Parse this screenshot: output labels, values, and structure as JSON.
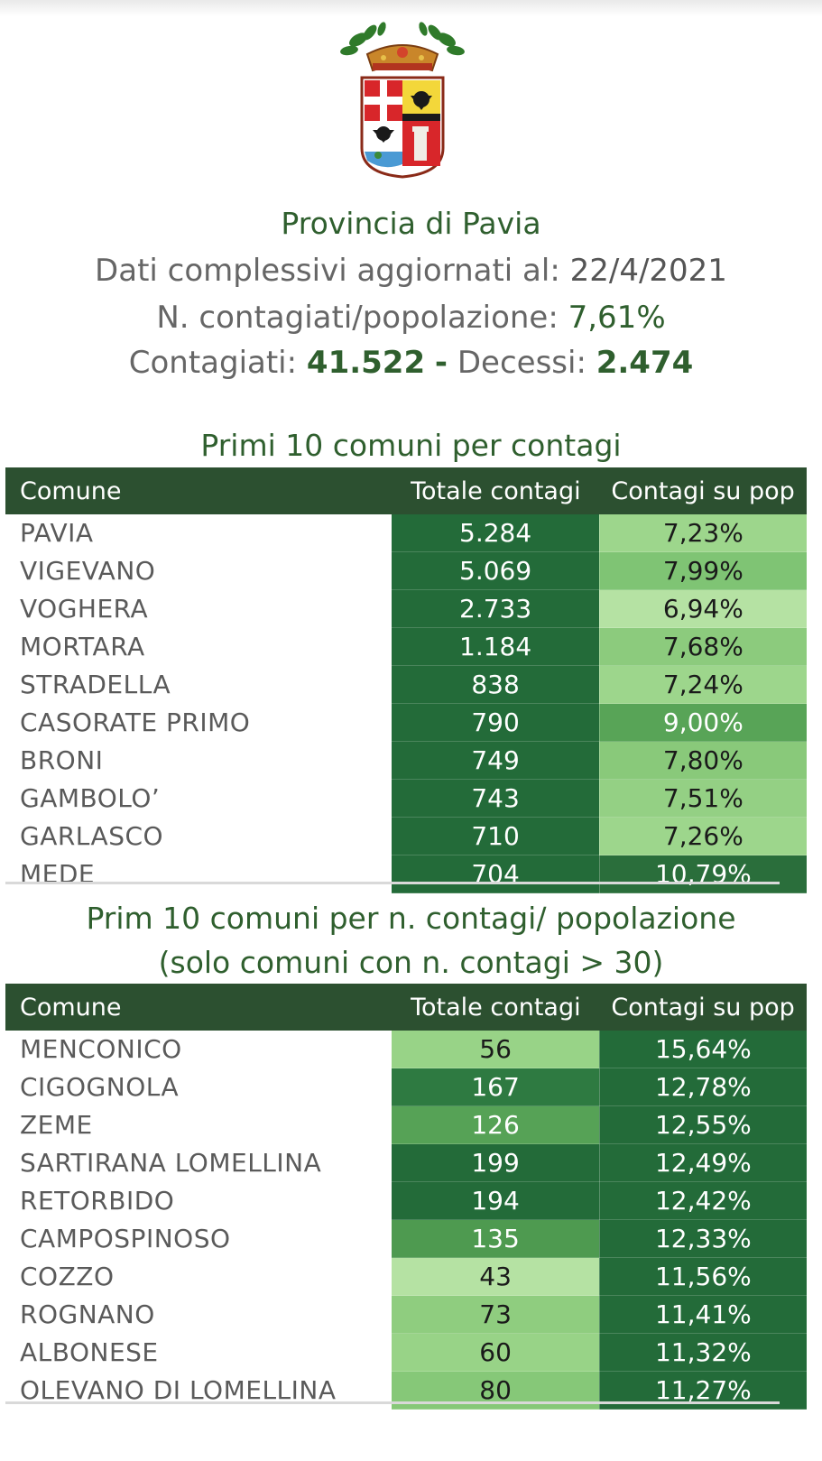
{
  "header": {
    "title": "Provincia di Pavia",
    "updated_label": "Dati complessivi aggiornati al:",
    "updated_date": "22/4/2021",
    "ratio_label": "N. contagiati/popolazione:",
    "ratio_value": "7,61%",
    "cases_label": "Contagiati:",
    "cases_value": "41.522",
    "sep": "-",
    "deaths_label": "Decessi:",
    "deaths_value": "2.474"
  },
  "table1": {
    "title": "Primi 10 comuni per contagi",
    "columns": [
      "Comune",
      "Totale contagi",
      "Contagi su pop"
    ],
    "rows": [
      {
        "comune": "PAVIA",
        "totale": "5.284",
        "pct": "7,23%",
        "c2": "#236b39",
        "c3": "#9dd68c",
        "t3": "#1a1a1a"
      },
      {
        "comune": "VIGEVANO",
        "totale": "5.069",
        "pct": "7,99%",
        "c2": "#236b39",
        "c3": "#7fc474",
        "t3": "#1a1a1a"
      },
      {
        "comune": "VOGHERA",
        "totale": "2.733",
        "pct": "6,94%",
        "c2": "#236b39",
        "c3": "#b5e2a3",
        "t3": "#1a1a1a"
      },
      {
        "comune": "MORTARA",
        "totale": "1.184",
        "pct": "7,68%",
        "c2": "#236b39",
        "c3": "#8ccb7d",
        "t3": "#1a1a1a"
      },
      {
        "comune": "STRADELLA",
        "totale": "838",
        "pct": "7,24%",
        "c2": "#236b39",
        "c3": "#9dd68c",
        "t3": "#1a1a1a"
      },
      {
        "comune": "CASORATE PRIMO",
        "totale": "790",
        "pct": "9,00%",
        "c2": "#236b39",
        "c3": "#58a457",
        "t3": "#ffffff"
      },
      {
        "comune": "BRONI",
        "totale": "749",
        "pct": "7,80%",
        "c2": "#236b39",
        "c3": "#89c97a",
        "t3": "#1a1a1a"
      },
      {
        "comune": "GAMBOLO’",
        "totale": "743",
        "pct": "7,51%",
        "c2": "#236b39",
        "c3": "#94d084",
        "t3": "#1a1a1a"
      },
      {
        "comune": "GARLASCO",
        "totale": "710",
        "pct": "7,26%",
        "c2": "#236b39",
        "c3": "#9dd68c",
        "t3": "#1a1a1a"
      },
      {
        "comune": "MEDE",
        "totale": "704",
        "pct": "10,79%",
        "c2": "#236b39",
        "c3": "#2a6e3b",
        "t3": "#ffffff"
      }
    ]
  },
  "table2": {
    "title_line1": "Prim 10 comuni per n. contagi/ popolazione",
    "title_line2": "(solo comuni con n. contagi > 30)",
    "columns": [
      "Comune",
      "Totale contagi",
      "Contagi su pop"
    ],
    "rows": [
      {
        "comune": "MENCONICO",
        "totale": "56",
        "pct": "15,64%",
        "c2": "#98d387",
        "t2": "#1a1a1a",
        "c3": "#236b39"
      },
      {
        "comune": "CIGOGNOLA",
        "totale": "167",
        "pct": "12,78%",
        "c2": "#2e7a41",
        "t2": "#ffffff",
        "c3": "#236b39"
      },
      {
        "comune": "ZEME",
        "totale": "126",
        "pct": "12,55%",
        "c2": "#56a256",
        "t2": "#ffffff",
        "c3": "#236b39"
      },
      {
        "comune": "SARTIRANA LOMELLINA",
        "totale": "199",
        "pct": "12,49%",
        "c2": "#236b39",
        "t2": "#ffffff",
        "c3": "#236b39"
      },
      {
        "comune": "RETORBIDO",
        "totale": "194",
        "pct": "12,42%",
        "c2": "#236b39",
        "t2": "#ffffff",
        "c3": "#236b39"
      },
      {
        "comune": "CAMPOSPINOSO",
        "totale": "135",
        "pct": "12,33%",
        "c2": "#4e9a50",
        "t2": "#ffffff",
        "c3": "#236b39"
      },
      {
        "comune": "COZZO",
        "totale": "43",
        "pct": "11,56%",
        "c2": "#b5e2a3",
        "t2": "#1a1a1a",
        "c3": "#236b39"
      },
      {
        "comune": "ROGNANO",
        "totale": "73",
        "pct": "11,41%",
        "c2": "#8fcd7f",
        "t2": "#1a1a1a",
        "c3": "#236b39"
      },
      {
        "comune": "ALBONESE",
        "totale": "60",
        "pct": "11,32%",
        "c2": "#98d387",
        "t2": "#1a1a1a",
        "c3": "#236b39"
      },
      {
        "comune": "OLEVANO DI LOMELLINA",
        "totale": "80",
        "pct": "11,27%",
        "c2": "#86c878",
        "t2": "#1a1a1a",
        "c3": "#236b39"
      }
    ]
  }
}
